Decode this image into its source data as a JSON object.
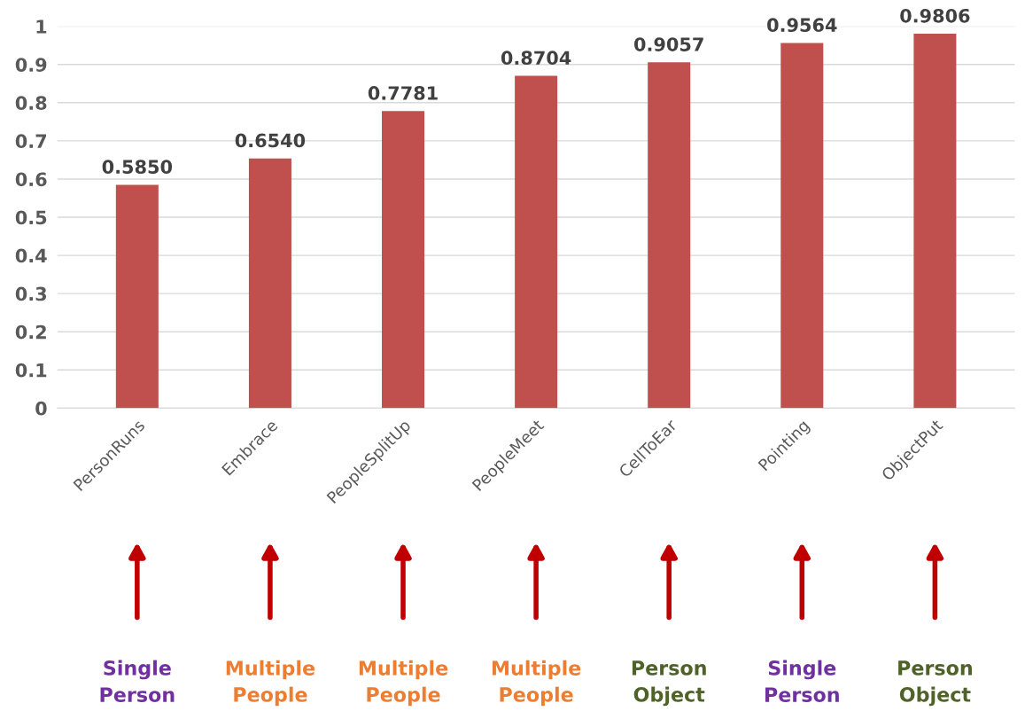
{
  "chart_data": {
    "type": "bar",
    "categories": [
      "PersonRuns",
      "Embrace",
      "PeopleSplitUp",
      "PeopleMeet",
      "CellToEar",
      "Pointing",
      "ObjectPut"
    ],
    "values": [
      0.585,
      0.654,
      0.7781,
      0.8704,
      0.9057,
      0.9564,
      0.9806
    ],
    "value_labels": [
      "0.5850",
      "0.6540",
      "0.7781",
      "0.8704",
      "0.9057",
      "0.9564",
      "0.9806"
    ],
    "color": "#c0504d",
    "ylim": [
      0,
      1
    ],
    "yticks": [
      {
        "value": 0,
        "label": "0"
      },
      {
        "value": 0.1,
        "label": "0.1"
      },
      {
        "value": 0.2,
        "label": "0.2"
      },
      {
        "value": 0.3,
        "label": "0.3"
      },
      {
        "value": 0.4,
        "label": "0.4"
      },
      {
        "value": 0.5,
        "label": "0.5"
      },
      {
        "value": 0.6,
        "label": "0.6"
      },
      {
        "value": 0.7,
        "label": "0.7"
      },
      {
        "value": 0.8,
        "label": "0.8"
      },
      {
        "value": 0.9,
        "label": "0.9"
      },
      {
        "value": 1,
        "label": "1"
      }
    ],
    "grid": "y",
    "legend": false,
    "annotations": [
      "Single Person",
      "Multiple People",
      "Multiple People",
      "Multiple People",
      "Person Object",
      "Single Person",
      "Person Object"
    ]
  }
}
